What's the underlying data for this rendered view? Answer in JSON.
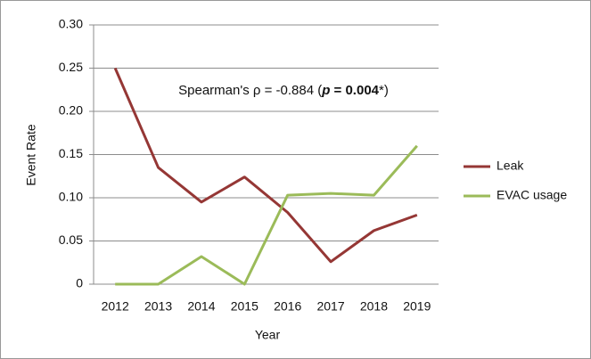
{
  "chart_data": {
    "type": "line",
    "x_label": "Year",
    "y_label": "Event Rate",
    "annotation": [
      "Spearman's ρ = -0.884 (",
      "p",
      " = 0.004",
      "*)"
    ],
    "categories": [
      "2012",
      "2013",
      "2014",
      "2015",
      "2016",
      "2017",
      "2018",
      "2019"
    ],
    "series": [
      {
        "name": "Leak",
        "color": "#953735",
        "values": [
          0.25,
          0.135,
          0.095,
          0.124,
          0.083,
          0.026,
          0.062,
          0.08
        ]
      },
      {
        "name": "EVAC usage",
        "color": "#9bbb59",
        "values": [
          0,
          0,
          0.032,
          0,
          0.103,
          0.105,
          0.103,
          0.16
        ]
      }
    ],
    "ylim": [
      0,
      0.3
    ],
    "yticks": [
      0,
      0.05,
      {
        "value": 0.1,
        "label": "0.10"
      },
      0.15,
      {
        "value": 0.2,
        "label": "0.20"
      },
      0.25,
      {
        "value": 0.3,
        "label": "0.30"
      }
    ],
    "grid": true,
    "legend": "right"
  }
}
